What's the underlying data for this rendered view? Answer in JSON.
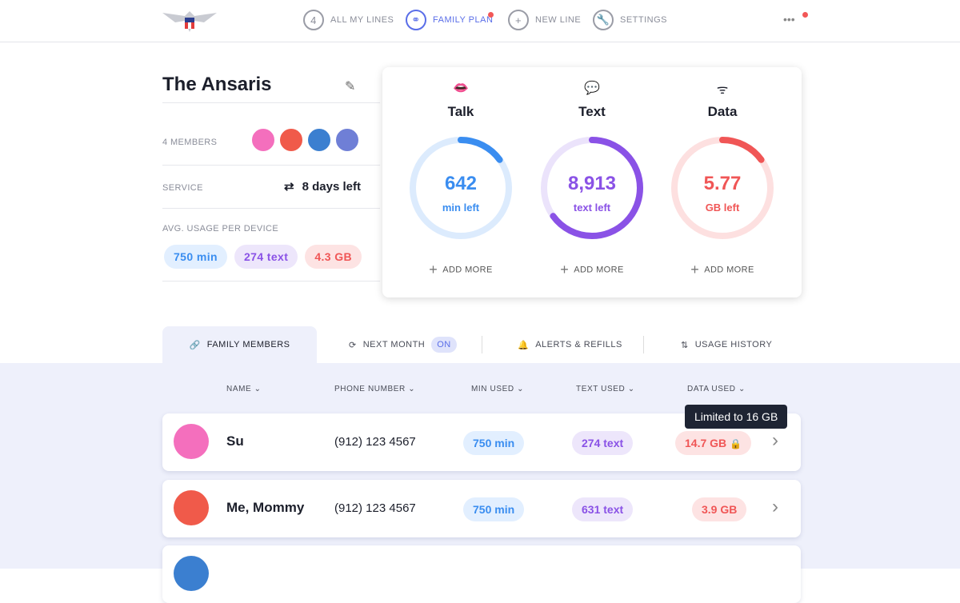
{
  "nav": {
    "items": [
      {
        "label": "ALL MY LINES",
        "icon_text": "4"
      },
      {
        "label": "FAMILY PLAN"
      },
      {
        "label": "NEW LINE"
      },
      {
        "label": "SETTINGS"
      }
    ],
    "more": "•••"
  },
  "family": {
    "name": "The Ansaris",
    "members_label": "4 MEMBERS",
    "service_label": "SERVICE",
    "service_value": "8 days left",
    "avg_label": "AVG. USAGE PER DEVICE",
    "avg": {
      "min": "750 min",
      "text": "274 text",
      "data": "4.3 GB"
    }
  },
  "usage": [
    {
      "title": "Talk",
      "value": "642",
      "unit": "min left",
      "progress": 0.15,
      "color": "#3a8df0",
      "track": "#dcebfd",
      "add": "ADD MORE"
    },
    {
      "title": "Text",
      "value": "8,913",
      "unit": "text left",
      "progress": 0.65,
      "color": "#8a52e6",
      "track": "#ebe3fb",
      "add": "ADD MORE"
    },
    {
      "title": "Data",
      "value": "5.77",
      "unit": "GB left",
      "progress": 0.15,
      "color": "#f05656",
      "track": "#fde0e0",
      "add": "ADD MORE"
    }
  ],
  "tabs": {
    "family": "FAMILY MEMBERS",
    "next": "NEXT MONTH",
    "next_badge": "ON",
    "alerts": "ALERTS & REFILLS",
    "history": "USAGE HISTORY"
  },
  "table": {
    "headers": [
      "NAME",
      "PHONE NUMBER",
      "MIN USED",
      "TEXT USED",
      "DATA USED"
    ],
    "rows": [
      {
        "name": "Su",
        "phone": "(912) 123 4567",
        "min": "750 min",
        "text": "274 text",
        "data": "14.7 GB"
      },
      {
        "name": "Me, Mommy",
        "phone": "(912) 123 4567",
        "min": "750 min",
        "text": "631 text",
        "data": "3.9 GB"
      }
    ],
    "tooltip": "Limited to 16 GB"
  }
}
